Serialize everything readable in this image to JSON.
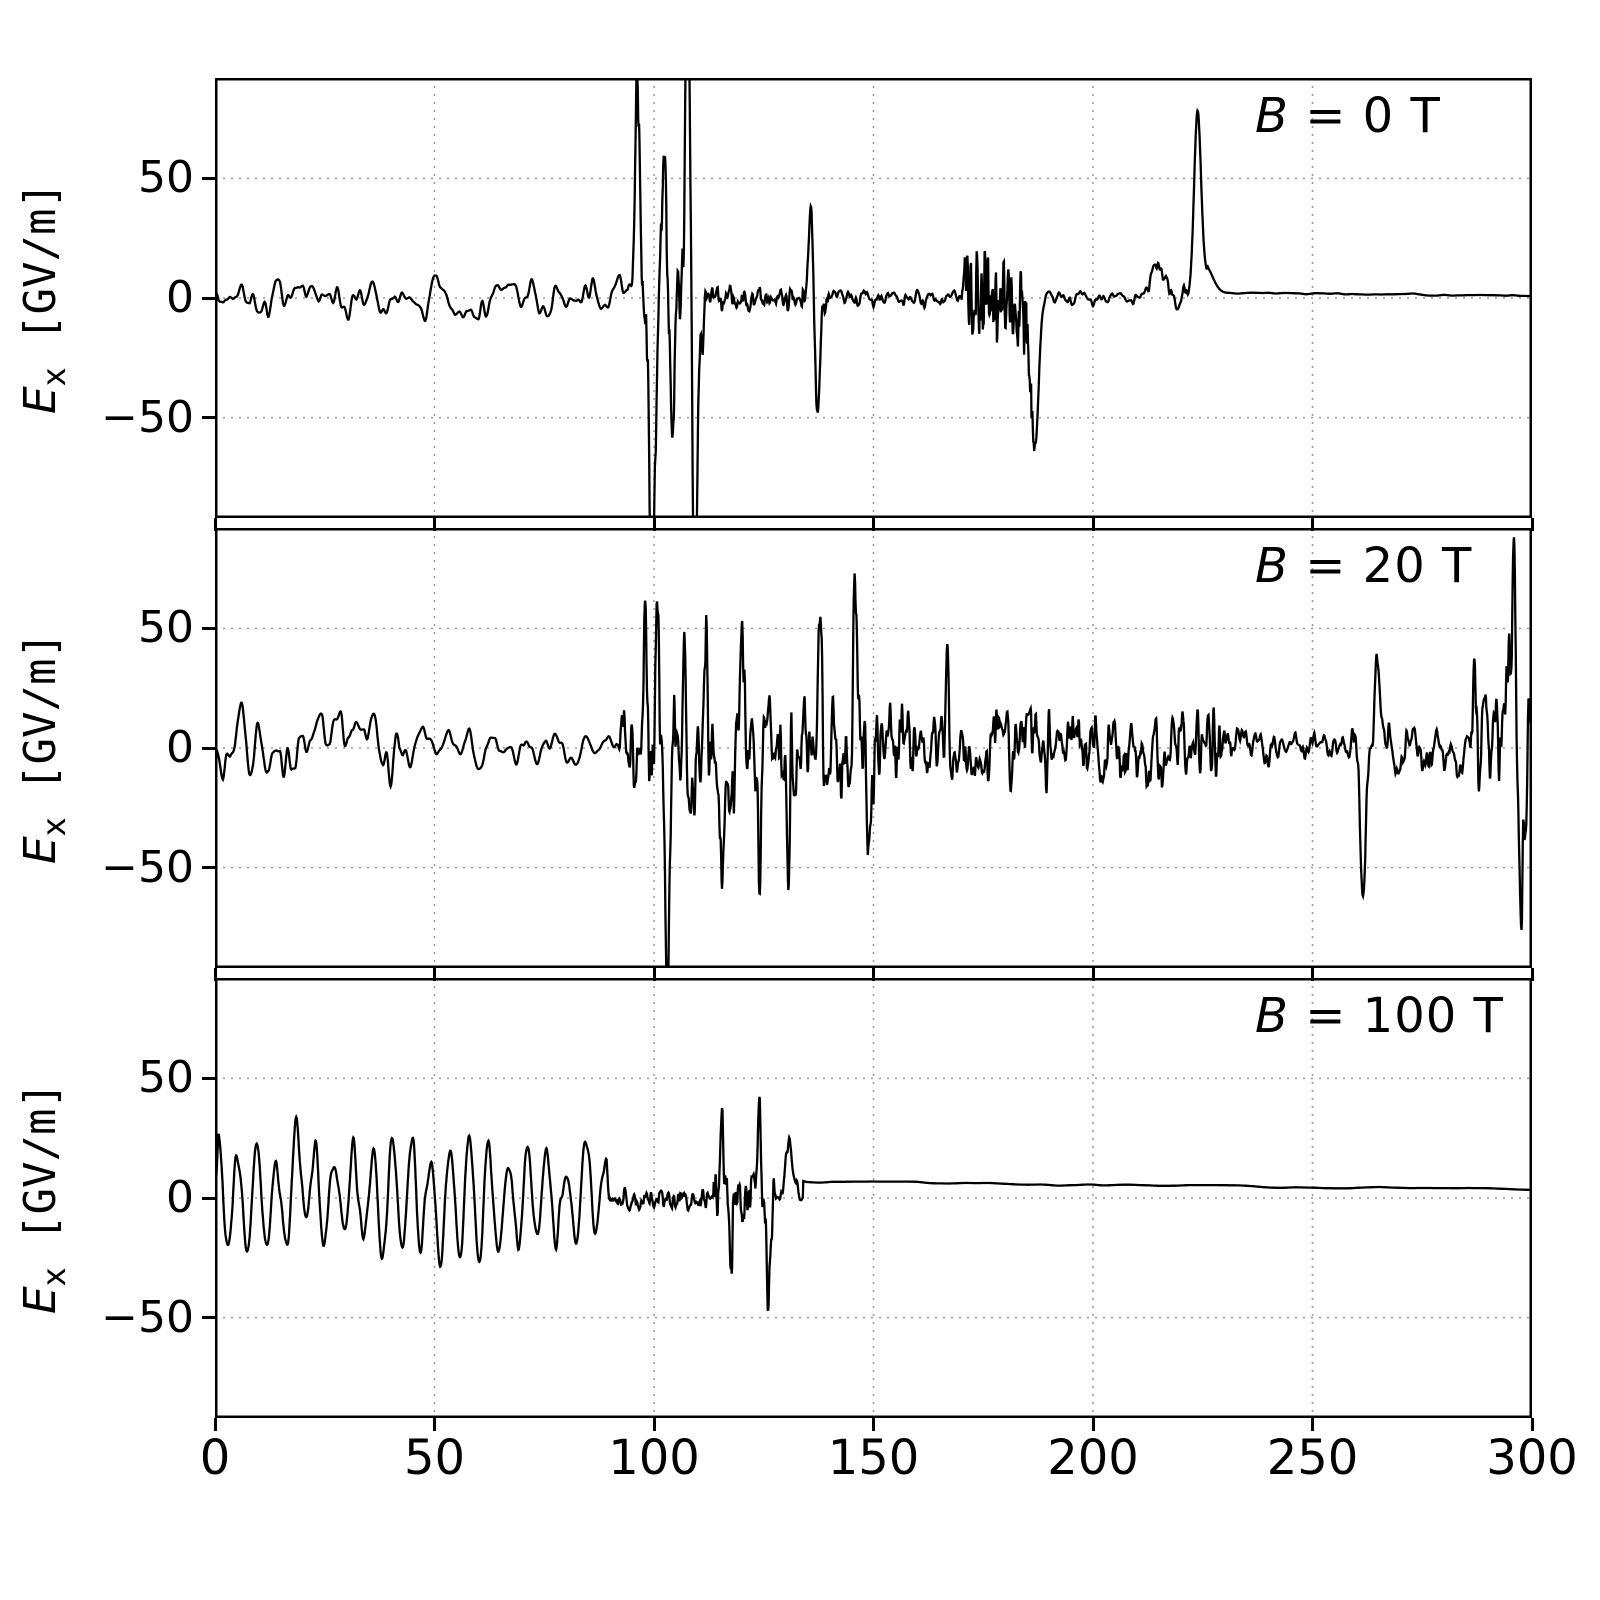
{
  "chart_data": {
    "type": "line",
    "title": "",
    "xlabel": "",
    "ylabel": "E_x [GV/m]",
    "xlim": [
      0,
      300
    ],
    "x_ticks": [
      0,
      50,
      100,
      150,
      200,
      250,
      300
    ],
    "x_tick_labels": [
      "0",
      "50",
      "100",
      "150",
      "200",
      "250",
      "300"
    ],
    "grid": "dotted",
    "legend": "none",
    "colors": {
      "line": "#000000",
      "grid": "#999999",
      "text": "#000000",
      "background": "#ffffff"
    },
    "panels": [
      {
        "annotation_var": "B",
        "annotation_rest": " = 0 T",
        "ylabel_var": "E",
        "ylabel_sub": "x",
        "ylabel_unit": " [GV/m]",
        "ylim": [
          -92,
          92
        ],
        "y_ticks": [
          50,
          0,
          -50
        ],
        "y_tick_labels": [
          "50",
          "0",
          "−50"
        ],
        "seed": 11,
        "segments": [
          {
            "t": "n",
            "x0": 0,
            "x1": 95,
            "amp": 12,
            "f": 0.5
          },
          {
            "t": "n",
            "x0": 95,
            "x1": 112,
            "amp": 25,
            "f": 2.2
          },
          {
            "t": "n",
            "x0": 112,
            "x1": 133,
            "amp": 7,
            "f": 1.8
          },
          {
            "t": "n",
            "x0": 133,
            "x1": 140,
            "amp": 10,
            "f": 2.0
          },
          {
            "t": "n",
            "x0": 140,
            "x1": 170,
            "amp": 4.5,
            "f": 1.2
          },
          {
            "t": "n",
            "x0": 170,
            "x1": 187,
            "amp": 26,
            "f": 2.8
          },
          {
            "t": "n",
            "x0": 187,
            "x1": 212,
            "amp": 4,
            "f": 0.9
          },
          {
            "t": "n",
            "x0": 212,
            "x1": 222,
            "amp": 7,
            "f": 1.2
          },
          {
            "t": "n",
            "x0": 226,
            "x1": 300,
            "amp": 0.6,
            "f": 0.25,
            "b0": 2.5,
            "b1": 0.8
          }
        ],
        "spikes": [
          {
            "x": 96.3,
            "p": 84,
            "w": 0.8
          },
          {
            "x": 99.6,
            "p": -120,
            "w": 0.9
          },
          {
            "x": 102.3,
            "p": 68,
            "w": 0.6
          },
          {
            "x": 104.2,
            "p": -55,
            "w": 0.6
          },
          {
            "x": 107.8,
            "p": 135,
            "w": 0.9
          },
          {
            "x": 109.3,
            "p": -140,
            "w": 0.9
          },
          {
            "x": 135.8,
            "p": 34,
            "w": 0.8
          },
          {
            "x": 137.2,
            "p": -48,
            "w": 0.8
          },
          {
            "x": 186.8,
            "p": -62,
            "w": 1.2
          },
          {
            "x": 214.5,
            "p": 14,
            "w": 2.2
          },
          {
            "x": 223.8,
            "p": 74,
            "w": 1.1
          },
          {
            "x": 225.8,
            "p": 10,
            "w": 2.2
          }
        ]
      },
      {
        "annotation_var": "B",
        "annotation_rest": " = 20 T",
        "ylabel_var": "E",
        "ylabel_sub": "x",
        "ylabel_unit": " [GV/m]",
        "ylim": [
          -92,
          92
        ],
        "y_ticks": [
          50,
          0,
          -50
        ],
        "y_tick_labels": [
          "50",
          "0",
          "−50"
        ],
        "seed": 22,
        "segments": [
          {
            "t": "n",
            "x0": 0,
            "x1": 42,
            "amp": 20,
            "f": 0.5
          },
          {
            "t": "n",
            "x0": 42,
            "x1": 92,
            "amp": 10,
            "f": 0.45
          },
          {
            "t": "n",
            "x0": 92,
            "x1": 160,
            "amp": 32,
            "f": 1.6
          },
          {
            "t": "n",
            "x0": 160,
            "x1": 232,
            "amp": 20,
            "f": 1.6
          },
          {
            "t": "n",
            "x0": 232,
            "x1": 256,
            "amp": 11,
            "f": 1.0
          },
          {
            "t": "n",
            "x0": 256,
            "x1": 286,
            "amp": 15,
            "f": 1.2
          },
          {
            "t": "n",
            "x0": 286,
            "x1": 300,
            "amp": 40,
            "f": 1.5
          }
        ],
        "spikes": [
          {
            "x": 98.0,
            "p": 55,
            "w": 0.5
          },
          {
            "x": 100.8,
            "p": 60,
            "w": 0.5
          },
          {
            "x": 103.0,
            "p": -115,
            "w": 0.7
          },
          {
            "x": 107.0,
            "p": 50,
            "w": 0.5
          },
          {
            "x": 111.8,
            "p": 52,
            "w": 0.5
          },
          {
            "x": 115.5,
            "p": -62,
            "w": 0.6
          },
          {
            "x": 120.0,
            "p": 47,
            "w": 0.5
          },
          {
            "x": 124.0,
            "p": -58,
            "w": 0.5
          },
          {
            "x": 130.6,
            "p": -52,
            "w": 0.5
          },
          {
            "x": 137.8,
            "p": 52,
            "w": 0.5
          },
          {
            "x": 145.8,
            "p": 54,
            "w": 0.5
          },
          {
            "x": 148.8,
            "p": -58,
            "w": 0.5
          },
          {
            "x": 166.8,
            "p": 44,
            "w": 0.5
          },
          {
            "x": 261.5,
            "p": -68,
            "w": 0.9
          },
          {
            "x": 264.8,
            "p": 42,
            "w": 0.8
          },
          {
            "x": 295.5,
            "p": 66,
            "w": 0.9
          },
          {
            "x": 297.8,
            "p": -72,
            "w": 0.7
          }
        ]
      },
      {
        "annotation_var": "B",
        "annotation_rest": " = 100 T",
        "ylabel_var": "E",
        "ylabel_sub": "x",
        "ylabel_unit": " [GV/m]",
        "ylim": [
          -92,
          92
        ],
        "y_ticks": [
          50,
          0,
          -50
        ],
        "y_tick_labels": [
          "50",
          "0",
          "−50"
        ],
        "seed": 33,
        "segments": [
          {
            "t": "s",
            "x0": 0,
            "x1": 90,
            "amp": 27,
            "per": 4.4
          },
          {
            "t": "n",
            "x0": 90,
            "x1": 113,
            "amp": 6,
            "f": 1.8
          },
          {
            "t": "n",
            "x0": 113,
            "x1": 128,
            "amp": 16,
            "f": 2.2
          },
          {
            "t": "n",
            "x0": 128,
            "x1": 134,
            "amp": 6,
            "f": 1.2
          },
          {
            "t": "n",
            "x0": 134,
            "x1": 300,
            "amp": 0.7,
            "f": 0.12,
            "b0": 7,
            "b1": 3.5
          }
        ],
        "spikes": [
          {
            "x": 19.0,
            "p": 18,
            "w": 1.0
          },
          {
            "x": 86.0,
            "p": 16,
            "w": 0.8
          },
          {
            "x": 115.5,
            "p": 40,
            "w": 0.5
          },
          {
            "x": 117.5,
            "p": -36,
            "w": 0.5
          },
          {
            "x": 124.0,
            "p": 42,
            "w": 0.5
          },
          {
            "x": 126.0,
            "p": -40,
            "w": 0.5
          },
          {
            "x": 130.8,
            "p": 22,
            "w": 1.4
          }
        ]
      }
    ]
  }
}
